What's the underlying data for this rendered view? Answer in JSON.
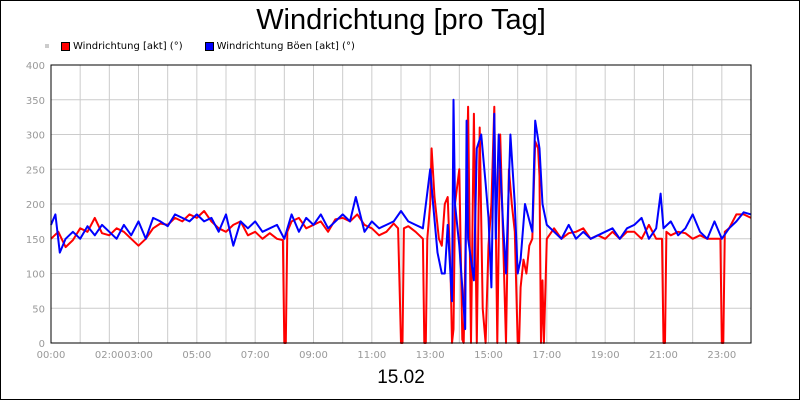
{
  "title": "Windrichtung [pro Tag]",
  "date_label": "15.02",
  "colors": {
    "series1": "#ff0000",
    "series2": "#0000ff",
    "grid": "#cccccc",
    "axis_text": "#999999",
    "plot_border": "#000000"
  },
  "legend": [
    {
      "label": "Windrichtung [akt] (°)",
      "color": "#ff0000"
    },
    {
      "label": "Windrichtung Böen [akt] (°)",
      "color": "#0000ff"
    }
  ],
  "chart_data": {
    "type": "line",
    "title": "Windrichtung [pro Tag]",
    "xlabel": "15.02",
    "ylabel": "",
    "xlim_hours": [
      0,
      24
    ],
    "ylim": [
      0,
      400
    ],
    "y_ticks": [
      0,
      50,
      100,
      150,
      200,
      250,
      300,
      350,
      400
    ],
    "x_ticks": [
      {
        "hour": 0,
        "label": "00:00"
      },
      {
        "hour": 2,
        "label": "02:00"
      },
      {
        "hour": 3,
        "label": "03:00"
      },
      {
        "hour": 5,
        "label": "05:00"
      },
      {
        "hour": 7,
        "label": "07:00"
      },
      {
        "hour": 9,
        "label": "09:00"
      },
      {
        "hour": 11,
        "label": "11:00"
      },
      {
        "hour": 13,
        "label": "13:00"
      },
      {
        "hour": 15,
        "label": "15:00"
      },
      {
        "hour": 17,
        "label": "17:00"
      },
      {
        "hour": 19,
        "label": "19:00"
      },
      {
        "hour": 21,
        "label": "21:00"
      },
      {
        "hour": 23,
        "label": "23:00"
      }
    ],
    "grid": true,
    "legend_position": "top-left",
    "series": [
      {
        "name": "Windrichtung [akt] (°)",
        "color": "#ff0000",
        "points": [
          [
            0.0,
            150
          ],
          [
            0.25,
            160
          ],
          [
            0.5,
            138
          ],
          [
            0.75,
            148
          ],
          [
            1.0,
            165
          ],
          [
            1.25,
            160
          ],
          [
            1.5,
            180
          ],
          [
            1.75,
            158
          ],
          [
            2.0,
            155
          ],
          [
            2.25,
            165
          ],
          [
            2.5,
            160
          ],
          [
            2.75,
            150
          ],
          [
            3.0,
            140
          ],
          [
            3.25,
            150
          ],
          [
            3.5,
            165
          ],
          [
            3.75,
            172
          ],
          [
            4.0,
            170
          ],
          [
            4.25,
            180
          ],
          [
            4.5,
            175
          ],
          [
            4.75,
            185
          ],
          [
            5.0,
            180
          ],
          [
            5.25,
            190
          ],
          [
            5.5,
            175
          ],
          [
            5.75,
            165
          ],
          [
            6.0,
            160
          ],
          [
            6.25,
            170
          ],
          [
            6.5,
            175
          ],
          [
            6.75,
            155
          ],
          [
            7.0,
            160
          ],
          [
            7.25,
            150
          ],
          [
            7.5,
            158
          ],
          [
            7.75,
            150
          ],
          [
            7.95,
            148
          ],
          [
            8.0,
            0
          ],
          [
            8.05,
            0
          ],
          [
            8.1,
            160
          ],
          [
            8.25,
            175
          ],
          [
            8.5,
            180
          ],
          [
            8.75,
            165
          ],
          [
            9.0,
            170
          ],
          [
            9.25,
            175
          ],
          [
            9.5,
            160
          ],
          [
            9.75,
            178
          ],
          [
            10.0,
            180
          ],
          [
            10.25,
            175
          ],
          [
            10.5,
            185
          ],
          [
            10.75,
            170
          ],
          [
            11.0,
            165
          ],
          [
            11.25,
            155
          ],
          [
            11.5,
            160
          ],
          [
            11.75,
            172
          ],
          [
            11.9,
            165
          ],
          [
            12.0,
            0
          ],
          [
            12.05,
            0
          ],
          [
            12.1,
            165
          ],
          [
            12.25,
            168
          ],
          [
            12.5,
            160
          ],
          [
            12.75,
            150
          ],
          [
            12.8,
            0
          ],
          [
            12.85,
            0
          ],
          [
            12.9,
            150
          ],
          [
            13.0,
            200
          ],
          [
            13.05,
            280
          ],
          [
            13.15,
            210
          ],
          [
            13.3,
            150
          ],
          [
            13.4,
            140
          ],
          [
            13.5,
            200
          ],
          [
            13.6,
            210
          ],
          [
            13.7,
            100
          ],
          [
            13.75,
            0
          ],
          [
            13.8,
            20
          ],
          [
            13.85,
            200
          ],
          [
            14.0,
            250
          ],
          [
            14.1,
            5
          ],
          [
            14.15,
            0
          ],
          [
            14.3,
            340
          ],
          [
            14.4,
            0
          ],
          [
            14.5,
            330
          ],
          [
            14.6,
            0
          ],
          [
            14.7,
            310
          ],
          [
            14.8,
            50
          ],
          [
            14.9,
            0
          ],
          [
            15.0,
            140
          ],
          [
            15.1,
            200
          ],
          [
            15.2,
            340
          ],
          [
            15.3,
            0
          ],
          [
            15.4,
            300
          ],
          [
            15.5,
            150
          ],
          [
            15.6,
            0
          ],
          [
            15.7,
            250
          ],
          [
            15.8,
            200
          ],
          [
            15.9,
            160
          ],
          [
            16.0,
            0
          ],
          [
            16.05,
            0
          ],
          [
            16.1,
            80
          ],
          [
            16.2,
            120
          ],
          [
            16.3,
            100
          ],
          [
            16.4,
            140
          ],
          [
            16.5,
            150
          ],
          [
            16.6,
            290
          ],
          [
            16.7,
            280
          ],
          [
            16.75,
            240
          ],
          [
            16.8,
            0
          ],
          [
            16.85,
            90
          ],
          [
            16.9,
            0
          ],
          [
            17.0,
            150
          ],
          [
            17.25,
            165
          ],
          [
            17.5,
            150
          ],
          [
            17.75,
            158
          ],
          [
            18.0,
            160
          ],
          [
            18.25,
            165
          ],
          [
            18.5,
            150
          ],
          [
            18.75,
            155
          ],
          [
            19.0,
            150
          ],
          [
            19.25,
            160
          ],
          [
            19.5,
            150
          ],
          [
            19.75,
            160
          ],
          [
            20.0,
            160
          ],
          [
            20.25,
            150
          ],
          [
            20.5,
            170
          ],
          [
            20.75,
            150
          ],
          [
            20.95,
            150
          ],
          [
            21.0,
            0
          ],
          [
            21.05,
            0
          ],
          [
            21.1,
            160
          ],
          [
            21.25,
            155
          ],
          [
            21.5,
            160
          ],
          [
            21.75,
            158
          ],
          [
            22.0,
            150
          ],
          [
            22.25,
            155
          ],
          [
            22.5,
            150
          ],
          [
            22.75,
            150
          ],
          [
            22.95,
            150
          ],
          [
            23.0,
            0
          ],
          [
            23.05,
            0
          ],
          [
            23.1,
            160
          ],
          [
            23.25,
            165
          ],
          [
            23.5,
            185
          ],
          [
            23.75,
            185
          ],
          [
            24.0,
            180
          ]
        ]
      },
      {
        "name": "Windrichtung Böen [akt] (°)",
        "color": "#0000ff",
        "points": [
          [
            0.0,
            170
          ],
          [
            0.15,
            185
          ],
          [
            0.3,
            130
          ],
          [
            0.5,
            150
          ],
          [
            0.75,
            160
          ],
          [
            1.0,
            150
          ],
          [
            1.25,
            168
          ],
          [
            1.5,
            155
          ],
          [
            1.75,
            170
          ],
          [
            2.0,
            160
          ],
          [
            2.25,
            150
          ],
          [
            2.5,
            170
          ],
          [
            2.75,
            155
          ],
          [
            3.0,
            175
          ],
          [
            3.25,
            150
          ],
          [
            3.5,
            180
          ],
          [
            3.75,
            175
          ],
          [
            4.0,
            168
          ],
          [
            4.25,
            185
          ],
          [
            4.5,
            180
          ],
          [
            4.75,
            175
          ],
          [
            5.0,
            185
          ],
          [
            5.25,
            175
          ],
          [
            5.5,
            180
          ],
          [
            5.75,
            160
          ],
          [
            6.0,
            185
          ],
          [
            6.25,
            140
          ],
          [
            6.5,
            175
          ],
          [
            6.75,
            165
          ],
          [
            7.0,
            175
          ],
          [
            7.25,
            160
          ],
          [
            7.5,
            165
          ],
          [
            7.75,
            170
          ],
          [
            8.0,
            150
          ],
          [
            8.25,
            185
          ],
          [
            8.5,
            160
          ],
          [
            8.75,
            180
          ],
          [
            9.0,
            170
          ],
          [
            9.25,
            185
          ],
          [
            9.5,
            165
          ],
          [
            9.75,
            175
          ],
          [
            10.0,
            185
          ],
          [
            10.25,
            175
          ],
          [
            10.45,
            210
          ],
          [
            10.6,
            185
          ],
          [
            10.75,
            160
          ],
          [
            11.0,
            175
          ],
          [
            11.25,
            165
          ],
          [
            11.5,
            170
          ],
          [
            11.75,
            175
          ],
          [
            12.0,
            190
          ],
          [
            12.25,
            175
          ],
          [
            12.5,
            170
          ],
          [
            12.75,
            165
          ],
          [
            13.0,
            250
          ],
          [
            13.1,
            200
          ],
          [
            13.25,
            130
          ],
          [
            13.4,
            100
          ],
          [
            13.5,
            100
          ],
          [
            13.6,
            170
          ],
          [
            13.75,
            60
          ],
          [
            13.8,
            350
          ],
          [
            13.85,
            200
          ],
          [
            14.0,
            140
          ],
          [
            14.1,
            80
          ],
          [
            14.2,
            20
          ],
          [
            14.25,
            320
          ],
          [
            14.3,
            150
          ],
          [
            14.5,
            90
          ],
          [
            14.6,
            280
          ],
          [
            14.75,
            300
          ],
          [
            14.9,
            230
          ],
          [
            15.0,
            180
          ],
          [
            15.1,
            80
          ],
          [
            15.2,
            330
          ],
          [
            15.25,
            150
          ],
          [
            15.35,
            300
          ],
          [
            15.5,
            170
          ],
          [
            15.6,
            100
          ],
          [
            15.75,
            300
          ],
          [
            15.9,
            200
          ],
          [
            16.0,
            100
          ],
          [
            16.1,
            120
          ],
          [
            16.25,
            200
          ],
          [
            16.5,
            160
          ],
          [
            16.6,
            320
          ],
          [
            16.75,
            280
          ],
          [
            16.85,
            200
          ],
          [
            17.0,
            170
          ],
          [
            17.25,
            160
          ],
          [
            17.5,
            150
          ],
          [
            17.75,
            170
          ],
          [
            18.0,
            150
          ],
          [
            18.25,
            160
          ],
          [
            18.5,
            150
          ],
          [
            18.75,
            155
          ],
          [
            19.0,
            160
          ],
          [
            19.25,
            165
          ],
          [
            19.5,
            150
          ],
          [
            19.75,
            165
          ],
          [
            20.0,
            170
          ],
          [
            20.25,
            180
          ],
          [
            20.5,
            150
          ],
          [
            20.75,
            165
          ],
          [
            20.9,
            215
          ],
          [
            21.0,
            165
          ],
          [
            21.25,
            175
          ],
          [
            21.5,
            155
          ],
          [
            21.75,
            165
          ],
          [
            22.0,
            185
          ],
          [
            22.25,
            160
          ],
          [
            22.5,
            150
          ],
          [
            22.75,
            175
          ],
          [
            23.0,
            150
          ],
          [
            23.25,
            165
          ],
          [
            23.5,
            175
          ],
          [
            23.75,
            188
          ],
          [
            24.0,
            185
          ]
        ]
      }
    ]
  }
}
